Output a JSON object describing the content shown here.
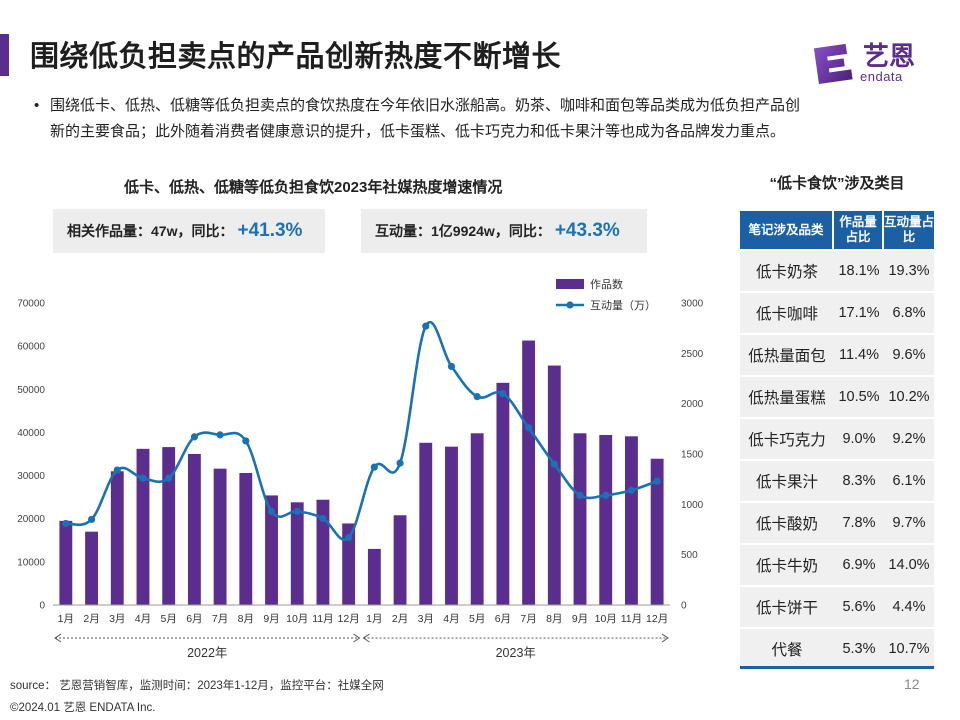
{
  "header": {
    "title": "围绕低负担卖点的产品创新热度不断增长",
    "logo_cn": "艺恩",
    "logo_en": "endata"
  },
  "bullet": "围绕低卡、低热、低糖等低负担卖点的食饮热度在今年依旧水涨船高。奶茶、咖啡和面包等品类成为低负担产品创新的主要食品；此外随着消费者健康意识的提升，低卡蛋糕、低卡巧克力和低卡果汁等也成为各品牌发力重点。",
  "chart_title": "低卡、低热、低糖等低负担食饮2023年社媒热度增速情况",
  "stats": [
    {
      "label": "相关作品量：47w，同比：",
      "value": "+41.3%"
    },
    {
      "label": "互动量：1亿9924w，同比：",
      "value": "+43.3%"
    }
  ],
  "chart_data": {
    "type": "bar+line",
    "categories": [
      "1月",
      "2月",
      "3月",
      "4月",
      "5月",
      "6月",
      "7月",
      "8月",
      "9月",
      "10月",
      "11月",
      "12月",
      "1月",
      "2月",
      "3月",
      "4月",
      "5月",
      "6月",
      "7月",
      "8月",
      "9月",
      "10月",
      "11月",
      "12月"
    ],
    "year_groups": [
      {
        "label": "2022年",
        "start": 0,
        "end": 11
      },
      {
        "label": "2023年",
        "start": 12,
        "end": 23
      }
    ],
    "series": [
      {
        "name": "作品数",
        "type": "bar",
        "axis": "left",
        "color": "#5b2d8e",
        "values": [
          19500,
          17000,
          31000,
          36200,
          36600,
          35000,
          31600,
          30600,
          25400,
          23800,
          24400,
          18900,
          13000,
          20800,
          37600,
          36700,
          39800,
          51500,
          61300,
          55500,
          39800,
          39400,
          39100,
          33900
        ]
      },
      {
        "name": "互动量（万）",
        "type": "line",
        "axis": "right",
        "color": "#1a72b5",
        "values": [
          810,
          850,
          1340,
          1260,
          1260,
          1670,
          1690,
          1630,
          930,
          930,
          860,
          670,
          1370,
          1410,
          2770,
          2370,
          2070,
          2100,
          1760,
          1400,
          1090,
          1090,
          1140,
          1230
        ]
      }
    ],
    "y_left": {
      "min": 0,
      "max": 70000,
      "ticks": [
        0,
        10000,
        20000,
        30000,
        40000,
        50000,
        60000,
        70000
      ]
    },
    "y_right": {
      "min": 0,
      "max": 3000,
      "ticks": [
        0,
        500,
        1000,
        1500,
        2000,
        2500,
        3000
      ]
    },
    "legend_position": "top-right"
  },
  "table": {
    "title": "“低卡食饮”涉及类目",
    "headers": [
      "笔记涉及品类",
      "作品量占比",
      "互动量占比"
    ],
    "rows": [
      [
        "低卡奶茶",
        "18.1%",
        "19.3%"
      ],
      [
        "低卡咖啡",
        "17.1%",
        "6.8%"
      ],
      [
        "低热量面包",
        "11.4%",
        "9.6%"
      ],
      [
        "低热量蛋糕",
        "10.5%",
        "10.2%"
      ],
      [
        "低卡巧克力",
        "9.0%",
        "9.2%"
      ],
      [
        "低卡果汁",
        "8.3%",
        "6.1%"
      ],
      [
        "低卡酸奶",
        "7.8%",
        "9.7%"
      ],
      [
        "低卡牛奶",
        "6.9%",
        "14.0%"
      ],
      [
        "低卡饼干",
        "5.6%",
        "4.4%"
      ],
      [
        "代餐",
        "5.3%",
        "10.7%"
      ]
    ]
  },
  "footer": {
    "source": "source： 艺恩营销智库，监测时间：2023年1-12月，监控平台：社媒全网",
    "copyright": "©2024.01  艺恩 ENDATA Inc.",
    "page": "12"
  }
}
